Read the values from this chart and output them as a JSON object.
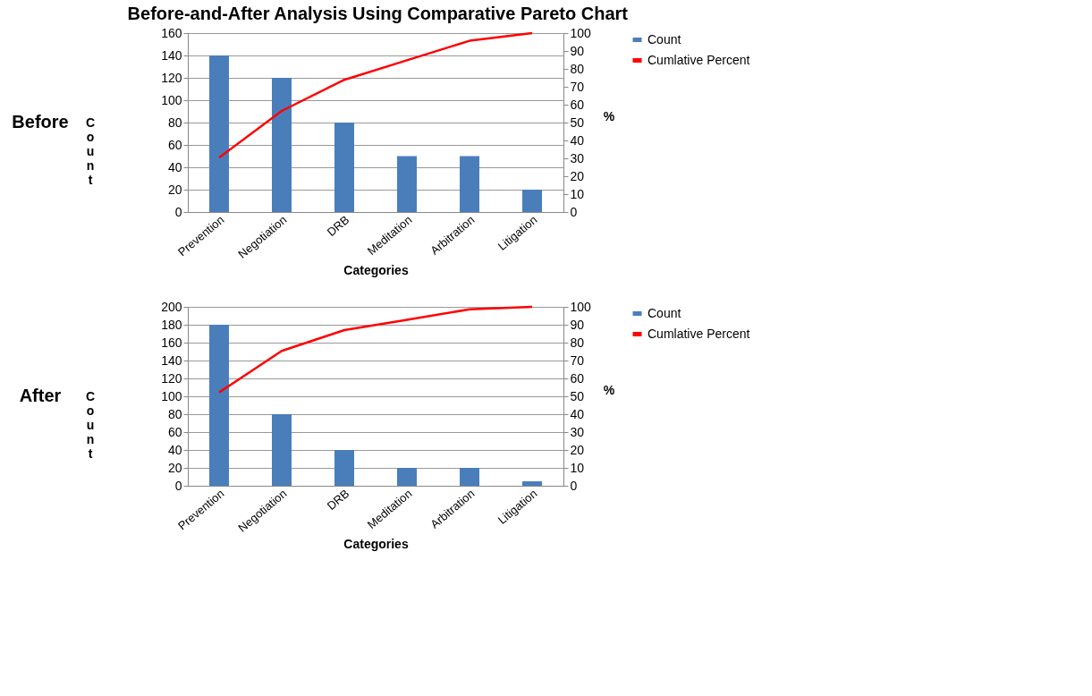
{
  "chart_data": [
    {
      "type": "bar",
      "title": "Before-and-After Analysis Using Comparative Pareto Chart",
      "annotations": [
        "Before"
      ],
      "categories": [
        "Prevention",
        "Negotiation",
        "DRB",
        "Meditation",
        "Arbitration",
        "Litigation"
      ],
      "series": [
        {
          "name": "Count",
          "color": "#4a7ebb",
          "values": [
            140,
            120,
            80,
            50,
            50,
            20
          ]
        },
        {
          "name": "Cumlative Percent",
          "type": "line",
          "axis": "y2",
          "color": "#ff0000",
          "values": [
            30.4,
            56.5,
            73.9,
            84.8,
            95.7,
            100
          ]
        }
      ],
      "xlabel": "Categories",
      "ylabel": "Count",
      "y2label": "%",
      "ylim": [
        0,
        160
      ],
      "yticks": [
        0,
        20,
        40,
        60,
        80,
        100,
        120,
        140,
        160
      ],
      "y2lim": [
        0,
        100
      ],
      "y2ticks": [
        0,
        10,
        20,
        30,
        40,
        50,
        60,
        70,
        80,
        90,
        100
      ],
      "grid": "y",
      "legend": "right"
    },
    {
      "type": "bar",
      "annotations": [
        "After"
      ],
      "categories": [
        "Prevention",
        "Negotiation",
        "DRB",
        "Meditation",
        "Arbitration",
        "Litigation"
      ],
      "series": [
        {
          "name": "Count",
          "color": "#4a7ebb",
          "values": [
            180,
            80,
            40,
            20,
            20,
            5
          ]
        },
        {
          "name": "Cumlative Percent",
          "type": "line",
          "axis": "y2",
          "color": "#ff0000",
          "values": [
            52.2,
            75.4,
            87,
            92.8,
            98.6,
            100
          ]
        }
      ],
      "xlabel": "Categories",
      "ylabel": "Count",
      "y2label": "%",
      "ylim": [
        0,
        200
      ],
      "yticks": [
        0,
        20,
        40,
        60,
        80,
        100,
        120,
        140,
        160,
        180,
        200
      ],
      "y2lim": [
        0,
        100
      ],
      "y2ticks": [
        0,
        10,
        20,
        30,
        40,
        50,
        60,
        70,
        80,
        90,
        100
      ],
      "grid": "y",
      "legend": "right"
    }
  ]
}
